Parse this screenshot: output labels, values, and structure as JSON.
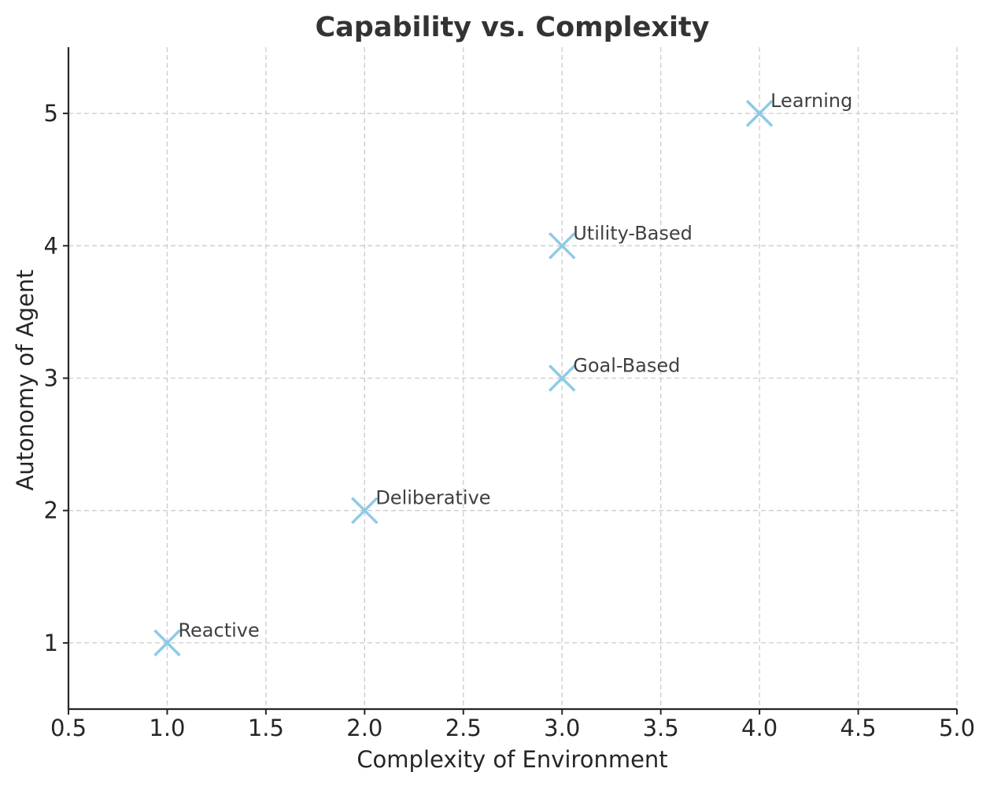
{
  "chart_data": {
    "type": "scatter",
    "title": "Capability vs. Complexity",
    "xlabel": "Complexity of Environment",
    "ylabel": "Autonomy of Agent",
    "xlim": [
      0.5,
      5.0
    ],
    "ylim": [
      0.5,
      5.5
    ],
    "xticks": [
      "0.5",
      "1.0",
      "1.5",
      "2.0",
      "2.5",
      "3.0",
      "3.5",
      "4.0",
      "4.5",
      "5.0"
    ],
    "yticks": [
      "1",
      "2",
      "3",
      "4",
      "5"
    ],
    "grid": true,
    "marker": "x",
    "marker_color": "#8ecae6",
    "points": [
      {
        "label": "Reactive",
        "x": 1,
        "y": 1
      },
      {
        "label": "Deliberative",
        "x": 2,
        "y": 2
      },
      {
        "label": "Goal-Based",
        "x": 3,
        "y": 3
      },
      {
        "label": "Utility-Based",
        "x": 3,
        "y": 4
      },
      {
        "label": "Learning",
        "x": 4,
        "y": 5
      }
    ]
  }
}
